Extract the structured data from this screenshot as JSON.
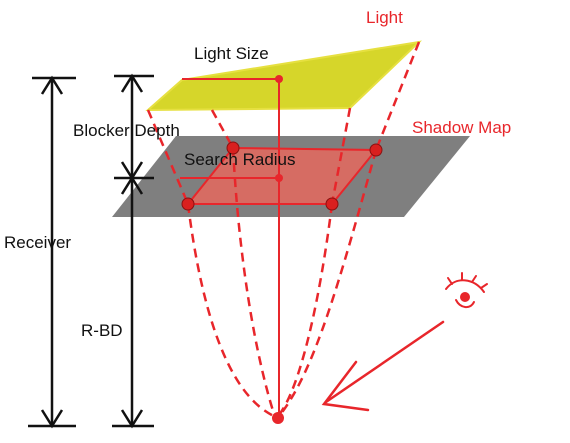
{
  "labels": {
    "light": "Light",
    "light_size": "Light Size",
    "shadow_map": "Shadow Map",
    "blocker_depth": "Blocker Depth",
    "search_radius": "Search Radius",
    "receiver": "Receiver",
    "r_bd": "R-BD"
  },
  "colors": {
    "light_plane": "#d6d62a",
    "shadow_plane": "#7f7f7f",
    "search_region": "#e06a60",
    "accent": "#e8262b",
    "dimension": "#111111"
  },
  "icons": {
    "eye": "eye-icon",
    "view_arrow": "view-direction-arrow"
  }
}
